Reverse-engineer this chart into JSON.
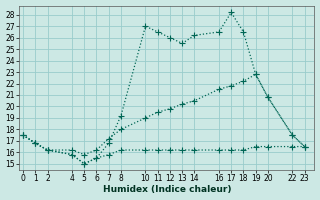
{
  "xlabel": "Humidex (Indice chaleur)",
  "background_color": "#cce8e4",
  "grid_color": "#99cccc",
  "line_color": "#006655",
  "xticks": [
    0,
    1,
    2,
    4,
    5,
    6,
    7,
    8,
    10,
    11,
    12,
    13,
    14,
    16,
    17,
    18,
    19,
    20,
    22,
    23
  ],
  "yticks": [
    15,
    16,
    17,
    18,
    19,
    20,
    21,
    22,
    23,
    24,
    25,
    26,
    27,
    28
  ],
  "ylim": [
    14.5,
    28.8
  ],
  "xlim": [
    -0.3,
    23.8
  ],
  "line1_x": [
    0,
    1,
    2,
    4,
    5,
    6,
    7,
    8,
    10,
    11,
    12,
    13,
    14,
    16,
    17,
    18,
    19,
    20,
    22,
    23
  ],
  "line1_y": [
    17.5,
    16.8,
    16.2,
    15.8,
    15.0,
    15.5,
    16.8,
    19.2,
    27.0,
    26.5,
    26.0,
    25.5,
    26.2,
    26.5,
    28.2,
    26.5,
    22.8,
    20.8,
    17.5,
    16.5
  ],
  "line2_x": [
    0,
    1,
    2,
    4,
    5,
    6,
    7,
    8,
    10,
    11,
    12,
    13,
    14,
    16,
    17,
    18,
    19,
    20,
    22,
    23
  ],
  "line2_y": [
    17.5,
    16.8,
    16.2,
    16.2,
    15.8,
    16.2,
    17.2,
    18.0,
    19.0,
    19.5,
    19.8,
    20.2,
    20.5,
    21.5,
    21.8,
    22.2,
    22.8,
    20.8,
    17.5,
    16.5
  ],
  "line3_x": [
    0,
    1,
    2,
    4,
    5,
    6,
    7,
    8,
    10,
    11,
    12,
    13,
    14,
    16,
    17,
    18,
    19,
    20,
    22,
    23
  ],
  "line3_y": [
    17.5,
    16.8,
    16.2,
    15.8,
    15.0,
    15.5,
    15.8,
    16.2,
    16.2,
    16.2,
    16.2,
    16.2,
    16.2,
    16.2,
    16.2,
    16.2,
    16.5,
    16.5,
    16.5,
    16.5
  ]
}
